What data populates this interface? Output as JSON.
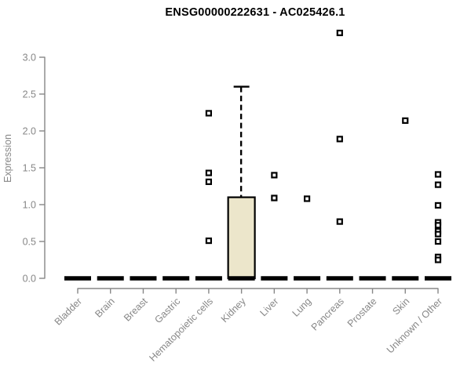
{
  "chart_data": {
    "type": "boxplot",
    "title": "ENSG00000222631 - AC025426.1",
    "ylabel": "Expression",
    "yticks": [
      "0.0",
      "0.5",
      "1.0",
      "1.5",
      "2.0",
      "2.5",
      "3.0"
    ],
    "ylim": [
      0,
      3.4
    ],
    "grid": false,
    "legend": false,
    "categories": [
      "Bladder",
      "Brain",
      "Breast",
      "Gastric",
      "Hematopoietic cells",
      "Kidney",
      "Liver",
      "Lung",
      "Pancreas",
      "Prostate",
      "Skin",
      "Unknown / Other"
    ],
    "boxes": [
      {
        "category": "Bladder",
        "q1": 0,
        "median": 0,
        "q3": 0,
        "whisker_low": 0,
        "whisker_high": 0,
        "outliers": []
      },
      {
        "category": "Brain",
        "q1": 0,
        "median": 0,
        "q3": 0,
        "whisker_low": 0,
        "whisker_high": 0,
        "outliers": []
      },
      {
        "category": "Breast",
        "q1": 0,
        "median": 0,
        "q3": 0,
        "whisker_low": 0,
        "whisker_high": 0,
        "outliers": []
      },
      {
        "category": "Gastric",
        "q1": 0,
        "median": 0,
        "q3": 0,
        "whisker_low": 0,
        "whisker_high": 0,
        "outliers": []
      },
      {
        "category": "Hematopoietic cells",
        "q1": 0,
        "median": 0,
        "q3": 0,
        "whisker_low": 0,
        "whisker_high": 0,
        "outliers": [
          2.24,
          1.43,
          1.31,
          0.51
        ]
      },
      {
        "category": "Kidney",
        "q1": 0,
        "median": 0,
        "q3": 1.1,
        "whisker_low": 0,
        "whisker_high": 2.6,
        "outliers": []
      },
      {
        "category": "Liver",
        "q1": 0,
        "median": 0,
        "q3": 0,
        "whisker_low": 0,
        "whisker_high": 0,
        "outliers": [
          1.4,
          1.09
        ]
      },
      {
        "category": "Lung",
        "q1": 0,
        "median": 0,
        "q3": 0,
        "whisker_low": 0,
        "whisker_high": 0,
        "outliers": [
          1.08
        ]
      },
      {
        "category": "Pancreas",
        "q1": 0,
        "median": 0,
        "q3": 0,
        "whisker_low": 0,
        "whisker_high": 0,
        "outliers": [
          3.33,
          1.89,
          0.77
        ]
      },
      {
        "category": "Prostate",
        "q1": 0,
        "median": 0,
        "q3": 0,
        "whisker_low": 0,
        "whisker_high": 0,
        "outliers": []
      },
      {
        "category": "Skin",
        "q1": 0,
        "median": 0,
        "q3": 0,
        "whisker_low": 0,
        "whisker_high": 0,
        "outliers": [
          2.14
        ]
      },
      {
        "category": "Unknown / Other",
        "q1": 0,
        "median": 0,
        "q3": 0,
        "whisker_low": 0,
        "whisker_high": 0,
        "outliers": [
          1.41,
          1.27,
          0.99,
          0.76,
          0.72,
          0.64,
          0.6,
          0.5,
          0.29,
          0.25
        ]
      }
    ],
    "colors": {
      "box_fill": "#ece6cb",
      "box_border": "#000000",
      "median": "#000000",
      "outlier_fill": "#ffffff",
      "outlier_border": "#000000",
      "axis": "#878787",
      "tick_text": "#878787",
      "title_text": "#000000"
    }
  }
}
